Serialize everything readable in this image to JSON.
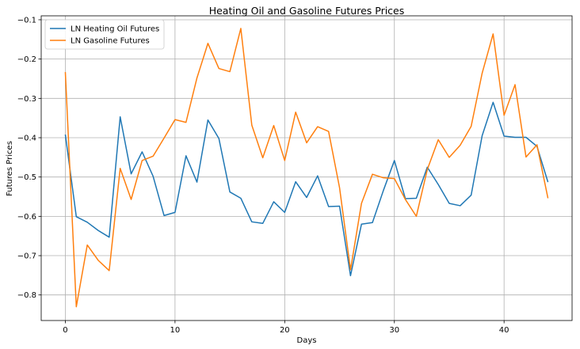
{
  "chart_data": {
    "type": "line",
    "title": "Heating Oil and Gasoline Futures Prices",
    "xlabel": "Days",
    "ylabel": "Futures Prices",
    "xlim": [
      -2.2,
      46.2
    ],
    "ylim": [
      -0.865,
      -0.09
    ],
    "xticks": [
      0,
      10,
      20,
      30,
      40
    ],
    "yticks": [
      -0.8,
      -0.7,
      -0.6,
      -0.5,
      -0.4,
      -0.3,
      -0.2,
      -0.1
    ],
    "grid": true,
    "legend_position": "top-left",
    "x": [
      0,
      1,
      2,
      3,
      4,
      5,
      6,
      7,
      8,
      9,
      10,
      11,
      12,
      13,
      14,
      15,
      16,
      17,
      18,
      19,
      20,
      21,
      22,
      23,
      24,
      25,
      26,
      27,
      28,
      29,
      30,
      31,
      32,
      33,
      34,
      35,
      36,
      37,
      38,
      39,
      40,
      41,
      42,
      43,
      44
    ],
    "series": [
      {
        "name": "LN Heating Oil Futures",
        "color": "#1f77b4",
        "values": [
          -0.392,
          -0.601,
          -0.615,
          -0.636,
          -0.653,
          -0.347,
          -0.492,
          -0.436,
          -0.498,
          -0.598,
          -0.59,
          -0.446,
          -0.513,
          -0.355,
          -0.402,
          -0.538,
          -0.554,
          -0.614,
          -0.618,
          -0.563,
          -0.59,
          -0.512,
          -0.552,
          -0.497,
          -0.575,
          -0.574,
          -0.751,
          -0.62,
          -0.616,
          -0.534,
          -0.458,
          -0.555,
          -0.554,
          -0.475,
          -0.519,
          -0.567,
          -0.573,
          -0.546,
          -0.395,
          -0.31,
          -0.396,
          -0.399,
          -0.399,
          -0.422,
          -0.513
        ]
      },
      {
        "name": "LN Gasoline Futures",
        "color": "#ff7f0e",
        "values": [
          -0.233,
          -0.83,
          -0.673,
          -0.712,
          -0.738,
          -0.478,
          -0.557,
          -0.458,
          -0.447,
          -0.401,
          -0.354,
          -0.361,
          -0.248,
          -0.16,
          -0.224,
          -0.232,
          -0.122,
          -0.368,
          -0.451,
          -0.369,
          -0.458,
          -0.335,
          -0.413,
          -0.372,
          -0.384,
          -0.527,
          -0.736,
          -0.567,
          -0.493,
          -0.502,
          -0.504,
          -0.557,
          -0.6,
          -0.481,
          -0.405,
          -0.45,
          -0.419,
          -0.371,
          -0.236,
          -0.136,
          -0.343,
          -0.265,
          -0.449,
          -0.418,
          -0.554
        ]
      }
    ]
  }
}
